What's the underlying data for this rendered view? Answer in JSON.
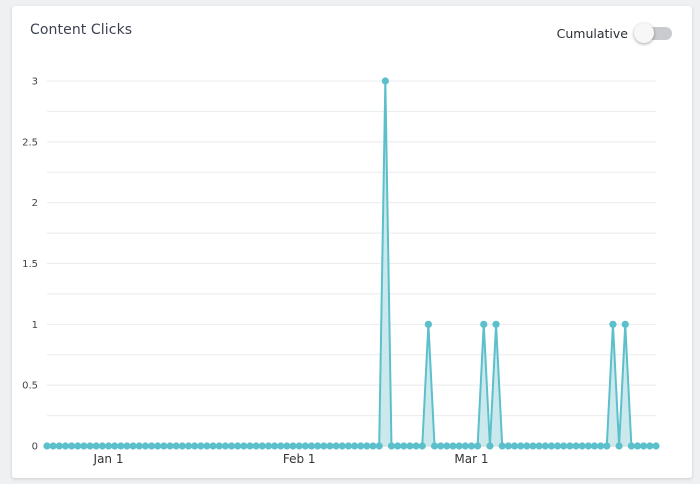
{
  "card": {
    "title": "Content Clicks",
    "toggle_label": "Cumulative",
    "toggle_on": false
  },
  "colors": {
    "line": "#5bc0cb",
    "area": "#cbe9ec",
    "grid": "#e9ebed",
    "baseline": "#c9c9c9"
  },
  "chart_data": {
    "type": "area",
    "title": "Content Clicks",
    "xlabel": "",
    "ylabel": "",
    "x_start": "2017-12-22",
    "x_end": "2018-03-31",
    "ylim": [
      0,
      3
    ],
    "yticks": [
      "0",
      "0.5",
      "1",
      "1.5",
      "2",
      "2.5",
      "3"
    ],
    "xticks": [
      {
        "date": "2018-01-01",
        "label": "Jan 1"
      },
      {
        "date": "2018-02-01",
        "label": "Feb 1"
      },
      {
        "date": "2018-03-01",
        "label": "Mar 1"
      }
    ],
    "grid": true,
    "default_value": 0,
    "nonzero_points": [
      {
        "date": "2018-02-15",
        "value": 3
      },
      {
        "date": "2018-02-22",
        "value": 1
      },
      {
        "date": "2018-03-03",
        "value": 1
      },
      {
        "date": "2018-03-05",
        "value": 1
      },
      {
        "date": "2018-03-24",
        "value": 1
      },
      {
        "date": "2018-03-26",
        "value": 1
      }
    ]
  }
}
